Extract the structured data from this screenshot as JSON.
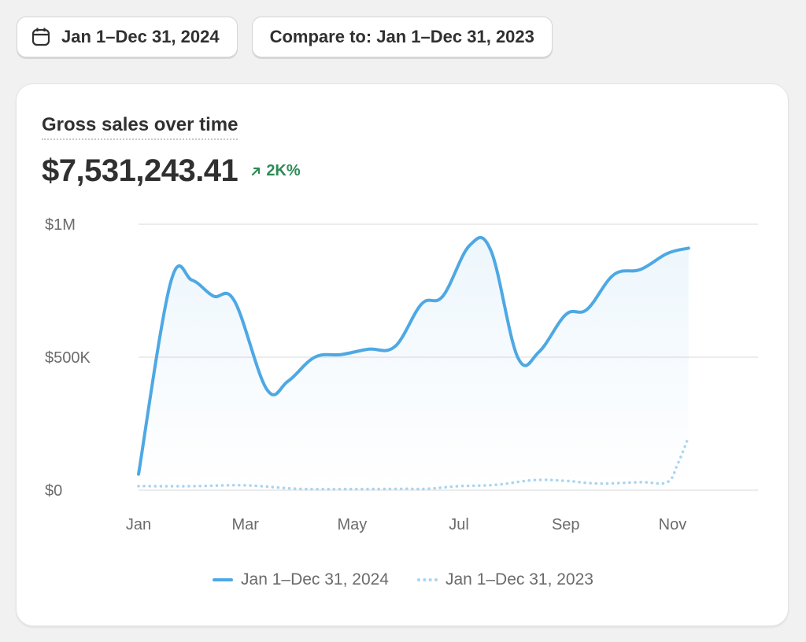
{
  "toolbar": {
    "date_range_label": "Jan 1–Dec 31, 2024",
    "compare_label": "Compare to: Jan 1–Dec 31, 2023"
  },
  "card": {
    "title": "Gross sales over time",
    "metric_value": "$7,531,243.41",
    "change_label": "2K%",
    "change_color": "#2e8b57"
  },
  "colors": {
    "current_series": "#4ea8e3",
    "previous_series": "#a9d4f0",
    "gridline": "#e6e6e6"
  },
  "chart_data": {
    "type": "line",
    "x_tick_labels": [
      "Jan",
      "Mar",
      "May",
      "Jul",
      "Sep",
      "Nov"
    ],
    "y_tick_labels": [
      "$1M",
      "$500K",
      "$0"
    ],
    "y_ticks": [
      1000000,
      500000,
      0
    ],
    "ylim": [
      0,
      1000000
    ],
    "xlim": [
      1,
      12.6
    ],
    "grid": true,
    "legend_position": "bottom-center",
    "series": [
      {
        "name": "Jan 1–Dec 31, 2024",
        "style": "solid",
        "points": [
          [
            1,
            60000
          ],
          [
            1.6,
            780000
          ],
          [
            2.0,
            790000
          ],
          [
            2.4,
            730000
          ],
          [
            2.8,
            710000
          ],
          [
            3.4,
            380000
          ],
          [
            3.8,
            410000
          ],
          [
            4.3,
            500000
          ],
          [
            4.8,
            510000
          ],
          [
            5.3,
            530000
          ],
          [
            5.8,
            540000
          ],
          [
            6.3,
            700000
          ],
          [
            6.7,
            730000
          ],
          [
            7.2,
            920000
          ],
          [
            7.6,
            900000
          ],
          [
            8.1,
            500000
          ],
          [
            8.5,
            520000
          ],
          [
            9.0,
            660000
          ],
          [
            9.4,
            680000
          ],
          [
            9.9,
            810000
          ],
          [
            10.4,
            830000
          ],
          [
            10.9,
            890000
          ],
          [
            11.3,
            910000
          ]
        ]
      },
      {
        "name": "Jan 1–Dec 31, 2023",
        "style": "dotted",
        "points": [
          [
            1,
            15000
          ],
          [
            2.0,
            15000
          ],
          [
            3.0,
            18000
          ],
          [
            4.0,
            5000
          ],
          [
            5.0,
            4000
          ],
          [
            6.0,
            5000
          ],
          [
            6.4,
            5000
          ],
          [
            7.0,
            15000
          ],
          [
            7.7,
            20000
          ],
          [
            8.4,
            38000
          ],
          [
            9.0,
            35000
          ],
          [
            9.6,
            25000
          ],
          [
            10.4,
            30000
          ],
          [
            10.9,
            30000
          ],
          [
            11.1,
            100000
          ],
          [
            11.3,
            200000
          ]
        ]
      }
    ]
  }
}
